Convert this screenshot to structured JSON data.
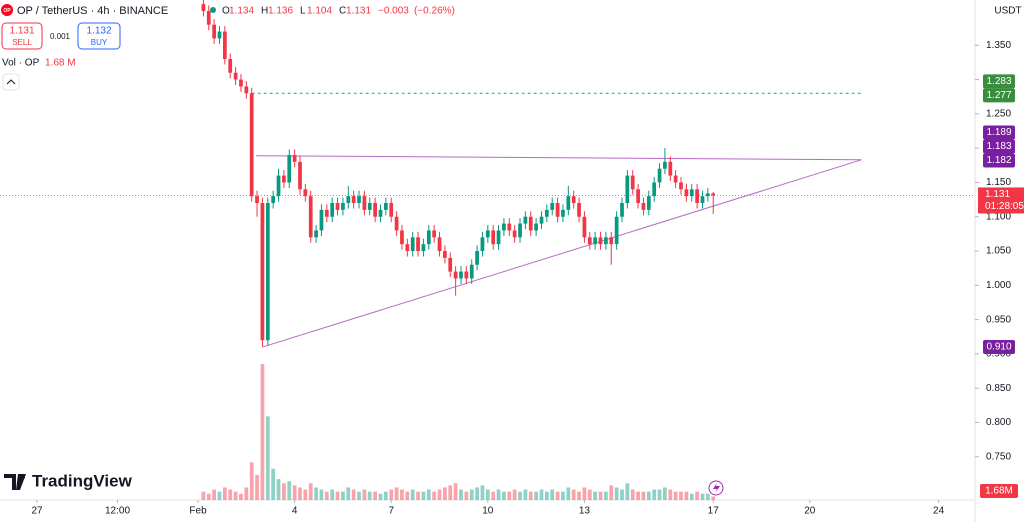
{
  "header": {
    "icon": "OP",
    "symbol": "OP / TetherUS · 4h · BINANCE",
    "ohlc": [
      {
        "label": "O",
        "value": 1.134
      },
      {
        "label": "H",
        "value": 1.136
      },
      {
        "label": "L",
        "value": 1.104
      },
      {
        "label": "C",
        "value": 1.131
      }
    ],
    "change": {
      "value": -0.003,
      "label": "−0.003"
    },
    "change_pct": {
      "value": -0.26,
      "label": "(−0.26%)"
    }
  },
  "trade": {
    "sell": {
      "price": 1.131,
      "label": "SELL"
    },
    "spread": 0.001,
    "buy": {
      "price": 1.132,
      "label": "BUY"
    }
  },
  "volume_header": {
    "label": "Vol · OP",
    "value": "1.68 M"
  },
  "brand": "TradingView",
  "chart_data": {
    "type": "candlestick",
    "currency": "USDT",
    "up_color": "#089981",
    "down_color": "#f23645",
    "grid": false,
    "x": [
      32.167,
      32.333,
      32.5,
      32.667,
      32.833,
      33,
      33.167,
      33.333,
      33.5,
      33.667,
      33.833,
      34,
      34.167,
      34.333,
      34.5,
      34.667,
      34.833,
      35,
      35.167,
      35.333,
      35.5,
      35.667,
      35.833,
      36,
      36.167,
      36.333,
      36.5,
      36.667,
      36.833,
      37,
      37.167,
      37.333,
      37.5,
      37.667,
      37.833,
      38,
      38.167,
      38.333,
      38.5,
      38.667,
      38.833,
      39,
      39.167,
      39.333,
      39.5,
      39.667,
      39.833,
      40,
      40.167,
      40.333,
      40.5,
      40.667,
      40.833,
      41,
      41.167,
      41.333,
      41.5,
      41.667,
      41.833,
      42,
      42.167,
      42.333,
      42.5,
      42.667,
      42.833,
      43,
      43.167,
      43.333,
      43.5,
      43.667,
      43.833,
      44,
      44.167,
      44.333,
      44.5,
      44.667,
      44.833,
      45,
      45.167,
      45.333,
      45.5,
      45.667,
      45.833,
      46,
      46.167,
      46.333,
      46.5,
      46.667,
      46.833,
      47,
      47.167,
      47.333,
      47.5,
      47.667,
      47.833,
      48
    ],
    "open": [
      1.41,
      1.4,
      1.38,
      1.36,
      1.37,
      1.33,
      1.31,
      1.3,
      1.29,
      1.28,
      1.13,
      1.12,
      0.92,
      1.12,
      1.13,
      1.16,
      1.15,
      1.19,
      1.18,
      1.14,
      1.13,
      1.07,
      1.08,
      1.11,
      1.1,
      1.12,
      1.11,
      1.12,
      1.13,
      1.12,
      1.13,
      1.11,
      1.12,
      1.1,
      1.11,
      1.12,
      1.1,
      1.08,
      1.06,
      1.05,
      1.07,
      1.05,
      1.06,
      1.08,
      1.07,
      1.05,
      1.04,
      1.02,
      1.01,
      1.02,
      1.01,
      1.03,
      1.05,
      1.07,
      1.08,
      1.06,
      1.08,
      1.09,
      1.08,
      1.07,
      1.09,
      1.1,
      1.08,
      1.09,
      1.1,
      1.11,
      1.12,
      1.1,
      1.11,
      1.13,
      1.12,
      1.1,
      1.07,
      1.06,
      1.07,
      1.06,
      1.07,
      1.06,
      1.1,
      1.12,
      1.16,
      1.14,
      1.12,
      1.11,
      1.13,
      1.15,
      1.17,
      1.18,
      1.16,
      1.15,
      1.14,
      1.13,
      1.14,
      1.12,
      1.13,
      1.134
    ],
    "high": [
      1.418,
      1.408,
      1.388,
      1.378,
      1.378,
      1.338,
      1.318,
      1.308,
      1.298,
      1.288,
      1.138,
      1.128,
      1.128,
      1.138,
      1.17,
      1.168,
      1.198,
      1.198,
      1.188,
      1.148,
      1.138,
      1.088,
      1.118,
      1.118,
      1.128,
      1.128,
      1.128,
      1.145,
      1.138,
      1.138,
      1.138,
      1.128,
      1.128,
      1.118,
      1.128,
      1.128,
      1.108,
      1.088,
      1.068,
      1.078,
      1.078,
      1.068,
      1.088,
      1.088,
      1.078,
      1.058,
      1.048,
      1.028,
      1.028,
      1.028,
      1.038,
      1.058,
      1.078,
      1.088,
      1.088,
      1.088,
      1.098,
      1.098,
      1.088,
      1.098,
      1.108,
      1.108,
      1.098,
      1.108,
      1.118,
      1.128,
      1.128,
      1.118,
      1.145,
      1.138,
      1.128,
      1.108,
      1.078,
      1.078,
      1.078,
      1.078,
      1.078,
      1.108,
      1.128,
      1.168,
      1.168,
      1.148,
      1.128,
      1.138,
      1.158,
      1.178,
      1.2,
      1.188,
      1.168,
      1.158,
      1.148,
      1.148,
      1.148,
      1.138,
      1.142,
      1.136
    ],
    "low": [
      1.392,
      1.372,
      1.352,
      1.352,
      1.322,
      1.302,
      1.292,
      1.282,
      1.272,
      1.122,
      1.1,
      0.91,
      0.912,
      1.112,
      1.122,
      1.142,
      1.142,
      1.172,
      1.132,
      1.122,
      1.062,
      1.062,
      1.072,
      1.092,
      1.092,
      1.102,
      1.102,
      1.112,
      1.112,
      1.112,
      1.102,
      1.102,
      1.092,
      1.092,
      1.102,
      1.092,
      1.072,
      1.052,
      1.042,
      1.042,
      1.042,
      1.042,
      1.052,
      1.062,
      1.042,
      1.032,
      1.012,
      0.985,
      1.002,
      1.002,
      1.002,
      1.022,
      1.042,
      1.062,
      1.052,
      1.052,
      1.072,
      1.072,
      1.062,
      1.062,
      1.082,
      1.072,
      1.072,
      1.082,
      1.092,
      1.102,
      1.092,
      1.092,
      1.102,
      1.112,
      1.092,
      1.062,
      1.052,
      1.052,
      1.052,
      1.052,
      1.03,
      1.052,
      1.092,
      1.112,
      1.132,
      1.112,
      1.102,
      1.102,
      1.122,
      1.142,
      1.162,
      1.152,
      1.142,
      1.132,
      1.122,
      1.122,
      1.112,
      1.112,
      1.122,
      1.104
    ],
    "close": [
      1.4,
      1.38,
      1.36,
      1.37,
      1.33,
      1.31,
      1.3,
      1.29,
      1.28,
      1.13,
      1.12,
      0.92,
      1.12,
      1.13,
      1.16,
      1.15,
      1.19,
      1.18,
      1.14,
      1.13,
      1.07,
      1.08,
      1.11,
      1.1,
      1.12,
      1.11,
      1.12,
      1.13,
      1.12,
      1.13,
      1.11,
      1.12,
      1.1,
      1.11,
      1.12,
      1.1,
      1.08,
      1.06,
      1.05,
      1.07,
      1.05,
      1.06,
      1.08,
      1.07,
      1.05,
      1.04,
      1.02,
      1.01,
      1.02,
      1.01,
      1.03,
      1.05,
      1.07,
      1.08,
      1.06,
      1.08,
      1.09,
      1.08,
      1.07,
      1.09,
      1.1,
      1.08,
      1.09,
      1.1,
      1.11,
      1.12,
      1.1,
      1.11,
      1.13,
      1.12,
      1.1,
      1.07,
      1.06,
      1.07,
      1.06,
      1.07,
      1.06,
      1.1,
      1.12,
      1.16,
      1.14,
      1.12,
      1.11,
      1.13,
      1.15,
      1.17,
      1.18,
      1.16,
      1.15,
      1.14,
      1.13,
      1.14,
      1.12,
      1.13,
      1.134,
      1.131
    ],
    "volume": [
      4,
      3,
      5,
      4,
      6,
      5,
      4,
      3,
      6,
      18,
      12,
      65,
      40,
      15,
      10,
      8,
      9,
      7,
      6,
      5,
      8,
      6,
      5,
      4,
      5,
      4,
      4,
      6,
      5,
      4,
      5,
      4,
      4,
      3,
      4,
      5,
      6,
      5,
      4,
      5,
      4,
      4,
      5,
      4,
      5,
      6,
      7,
      8,
      5,
      4,
      5,
      6,
      7,
      5,
      4,
      5,
      4,
      4,
      5,
      4,
      5,
      4,
      4,
      5,
      4,
      5,
      4,
      4,
      6,
      5,
      4,
      6,
      5,
      4,
      4,
      4,
      7,
      6,
      5,
      8,
      5,
      4,
      4,
      4,
      5,
      5,
      6,
      5,
      4,
      4,
      4,
      3,
      4,
      3,
      3,
      1.68
    ],
    "volume_label": "1.68M",
    "xlim": [
      25.85,
      56.13
    ],
    "xticks": [
      27,
      {
        "value": 29.5,
        "label": "12:00"
      },
      {
        "value": 32,
        "label": "Feb"
      },
      {
        "value": 35,
        "label": "4"
      },
      {
        "value": 38,
        "label": "7"
      },
      {
        "value": 41,
        "label": "10"
      },
      {
        "value": 44,
        "label": "13"
      },
      {
        "value": 48,
        "label": "17"
      },
      {
        "value": 51,
        "label": "20"
      },
      {
        "value": 55,
        "label": "24"
      }
    ],
    "ylim": [
      0.687,
      1.416
    ],
    "yticks": [
      {
        "value": 1.35,
        "label": "1.350"
      },
      {
        "value": 1.3,
        "label": "1.300"
      },
      {
        "value": 1.25,
        "label": "1.250"
      },
      {
        "value": 1.2,
        "label": "1.200"
      },
      {
        "value": 1.15,
        "label": "1.150"
      },
      {
        "value": 1.1,
        "label": "1.100"
      },
      {
        "value": 1.05,
        "label": "1.050"
      },
      {
        "value": 1.0,
        "label": "1.000"
      },
      {
        "value": 0.95,
        "label": "0.950"
      },
      {
        "value": 0.9,
        "label": "0.900"
      },
      {
        "value": 0.85,
        "label": "0.850"
      },
      {
        "value": 0.8,
        "label": "0.800"
      },
      {
        "value": 0.75,
        "label": "0.750"
      }
    ],
    "price_labels": [
      {
        "value": 1.283,
        "color": "#388e3c"
      },
      {
        "value": 1.277,
        "color": "#388e3c"
      },
      {
        "value": 1.189,
        "color": "#7b1fa2"
      },
      {
        "value": 1.183,
        "color": "#7b1fa2"
      },
      {
        "value": 1.182,
        "color": "#7b1fa2"
      },
      {
        "value": 0.91,
        "label": "0.910",
        "color": "#7b1fa2"
      }
    ],
    "last_price": {
      "value": 1.131,
      "countdown": "01:28:05"
    },
    "drawings": [
      {
        "x": [
          33.667,
          52.6
        ],
        "y": [
          1.28,
          1.28
        ],
        "color": "#26a69a",
        "dashed": true
      },
      {
        "x": [
          33.8,
          52.6
        ],
        "y": [
          1.189,
          1.183
        ],
        "color": "#ba68c8",
        "dashed": false
      },
      {
        "x": [
          34,
          52.6
        ],
        "y": [
          0.91,
          1.183
        ],
        "color": "#ba68c8",
        "dashed": false
      }
    ]
  }
}
